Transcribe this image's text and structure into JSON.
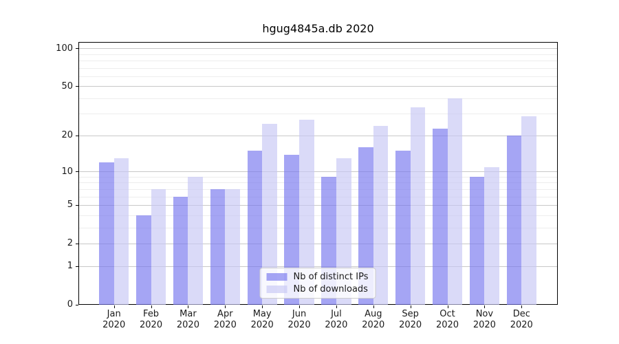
{
  "title": "hgug4845a.db 2020",
  "colors": {
    "background": "#ffffff",
    "spine": "#000000",
    "text": "#1a1a1a",
    "grid_major": "#c8c8c8",
    "grid_minor": "#ededed",
    "series_ips": "rgba(119,119,238,0.66)",
    "series_downloads": "rgba(199,199,245,0.66)"
  },
  "chart_data": {
    "type": "bar",
    "title": "hgug4845a.db 2020",
    "categories": [
      "Jan 2020",
      "Feb 2020",
      "Mar 2020",
      "Apr 2020",
      "May 2020",
      "Jun 2020",
      "Jul 2020",
      "Aug 2020",
      "Sep 2020",
      "Oct 2020",
      "Nov 2020",
      "Dec 2020"
    ],
    "series": [
      {
        "name": "Nb of distinct IPs",
        "color": "rgba(119,119,238,0.66)",
        "values": [
          12,
          4,
          6,
          7,
          15,
          14,
          9,
          16,
          15,
          23,
          9,
          20
        ]
      },
      {
        "name": "Nb of downloads",
        "color": "rgba(199,199,245,0.66)",
        "values": [
          13,
          7,
          9,
          7,
          25,
          27,
          13,
          24,
          34,
          40,
          11,
          29
        ]
      }
    ],
    "xlabel": "",
    "ylabel": "",
    "yscale": "log1p",
    "yticks": [
      0,
      1,
      2,
      5,
      10,
      20,
      50,
      100
    ],
    "ytick_labels": [
      "0",
      "1",
      "2",
      "5",
      "10",
      "20",
      "50",
      "100"
    ],
    "minor_grid_values": [
      3,
      4,
      6,
      7,
      8,
      9,
      30,
      40,
      60,
      70,
      80,
      90
    ],
    "ylim": [
      0,
      113
    ],
    "grid": true,
    "legend_position": "lower-center"
  }
}
